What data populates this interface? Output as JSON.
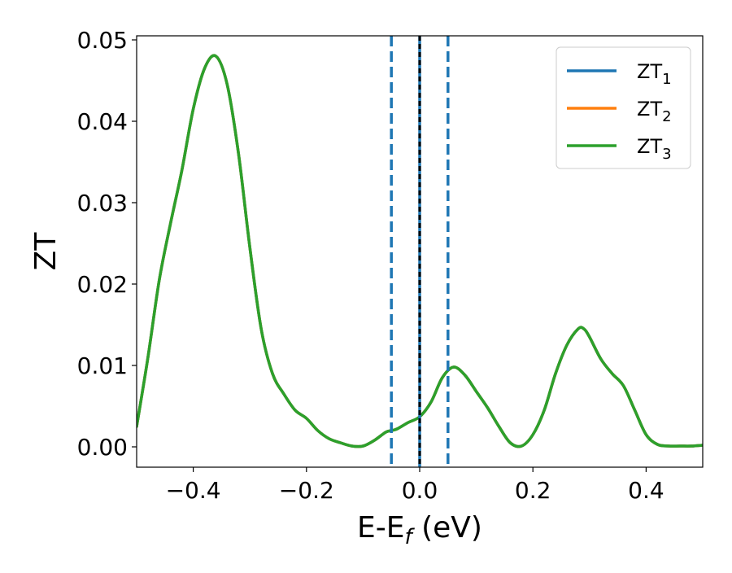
{
  "chart_data": {
    "type": "line",
    "title": "",
    "xlabel": "E-E",
    "xlabel_sub": "f",
    "xlabel_unit": " (eV)",
    "ylabel": "ZT",
    "xlim": [
      -0.5,
      0.5
    ],
    "ylim": [
      -0.0025,
      0.0505
    ],
    "xticks": [
      -0.4,
      -0.2,
      0.0,
      0.2,
      0.4
    ],
    "xtick_labels": [
      "−0.4",
      "−0.2",
      "0.0",
      "0.2",
      "0.4"
    ],
    "yticks": [
      0.0,
      0.01,
      0.02,
      0.03,
      0.04,
      0.05
    ],
    "ytick_labels": [
      "0.00",
      "0.01",
      "0.02",
      "0.03",
      "0.04",
      "0.05"
    ],
    "grid": false,
    "legend_position": "top-right",
    "x": [
      -0.5,
      -0.48,
      -0.46,
      -0.44,
      -0.42,
      -0.4,
      -0.38,
      -0.36,
      -0.34,
      -0.32,
      -0.3,
      -0.28,
      -0.26,
      -0.24,
      -0.22,
      -0.2,
      -0.18,
      -0.16,
      -0.14,
      -0.12,
      -0.1,
      -0.08,
      -0.06,
      -0.05,
      -0.04,
      -0.02,
      0.0,
      0.02,
      0.04,
      0.06,
      0.08,
      0.1,
      0.12,
      0.14,
      0.16,
      0.18,
      0.2,
      0.22,
      0.24,
      0.26,
      0.28,
      0.29,
      0.3,
      0.32,
      0.34,
      0.36,
      0.38,
      0.4,
      0.42,
      0.44,
      0.46,
      0.48,
      0.5
    ],
    "series": [
      {
        "name": "ZT",
        "sub": "1",
        "color": "#1f77b4",
        "values": [
          0.0025,
          0.011,
          0.0205,
          0.0275,
          0.034,
          0.0415,
          0.0465,
          0.048,
          0.0445,
          0.036,
          0.0245,
          0.0145,
          0.009,
          0.0065,
          0.0045,
          0.0035,
          0.002,
          0.001,
          0.0005,
          0.0001,
          0.0001,
          0.0008,
          0.0018,
          0.002,
          0.0022,
          0.003,
          0.0037,
          0.0055,
          0.0085,
          0.0098,
          0.0088,
          0.0068,
          0.0048,
          0.0025,
          0.0005,
          0.0001,
          0.0015,
          0.0045,
          0.009,
          0.0125,
          0.0145,
          0.0145,
          0.0135,
          0.0108,
          0.009,
          0.0075,
          0.0045,
          0.0015,
          0.0003,
          0.0001,
          0.0001,
          0.0001,
          0.0002
        ]
      },
      {
        "name": "ZT",
        "sub": "2",
        "color": "#ff7f0e",
        "values": [
          0.0025,
          0.011,
          0.0205,
          0.0275,
          0.034,
          0.0415,
          0.0465,
          0.048,
          0.0445,
          0.036,
          0.0245,
          0.0145,
          0.009,
          0.0065,
          0.0045,
          0.0035,
          0.002,
          0.001,
          0.0005,
          0.0001,
          0.0001,
          0.0008,
          0.0018,
          0.002,
          0.0022,
          0.003,
          0.0037,
          0.0055,
          0.0085,
          0.0098,
          0.0088,
          0.0068,
          0.0048,
          0.0025,
          0.0005,
          0.0001,
          0.0015,
          0.0045,
          0.009,
          0.0125,
          0.0145,
          0.0145,
          0.0135,
          0.0108,
          0.009,
          0.0075,
          0.0045,
          0.0015,
          0.0003,
          0.0001,
          0.0001,
          0.0001,
          0.0002
        ]
      },
      {
        "name": "ZT",
        "sub": "3",
        "color": "#2ca02c",
        "values": [
          0.0025,
          0.011,
          0.0205,
          0.0275,
          0.034,
          0.0415,
          0.0465,
          0.048,
          0.0445,
          0.036,
          0.0245,
          0.0145,
          0.009,
          0.0065,
          0.0045,
          0.0035,
          0.002,
          0.001,
          0.0005,
          0.0001,
          0.0001,
          0.0008,
          0.0018,
          0.002,
          0.0022,
          0.003,
          0.0037,
          0.0055,
          0.0085,
          0.0098,
          0.0088,
          0.0068,
          0.0048,
          0.0025,
          0.0005,
          0.0001,
          0.0015,
          0.0045,
          0.009,
          0.0125,
          0.0145,
          0.0145,
          0.0135,
          0.0108,
          0.009,
          0.0075,
          0.0045,
          0.0015,
          0.0003,
          0.0001,
          0.0001,
          0.0001,
          0.0002
        ]
      }
    ],
    "vlines": [
      {
        "x": -0.05,
        "style": "dashed",
        "color": "#1f77b4"
      },
      {
        "x": 0.05,
        "style": "dashed",
        "color": "#1f77b4"
      },
      {
        "x": 0.0,
        "style": "solid",
        "color": "#1f77b4"
      },
      {
        "x": 0.0,
        "style": "dashed",
        "color": "#000000"
      }
    ]
  }
}
